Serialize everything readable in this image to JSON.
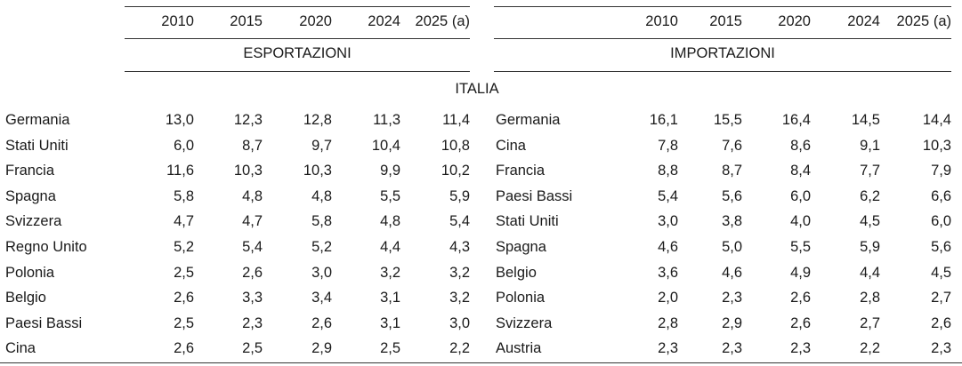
{
  "export_years": [
    "2010",
    "2015",
    "2020",
    "2024",
    "2025 (a)"
  ],
  "import_years": [
    "2010",
    "2015",
    "2020",
    "2024",
    "2025 (a)"
  ],
  "export_label": "ESPORTAZIONI",
  "import_label": "IMPORTAZIONI",
  "section_label": "ITALIA",
  "exports": [
    {
      "country": "Germania",
      "values": [
        "13,0",
        "12,3",
        "12,8",
        "11,3",
        "11,4"
      ]
    },
    {
      "country": "Stati Uniti",
      "values": [
        "6,0",
        "8,7",
        "9,7",
        "10,4",
        "10,8"
      ]
    },
    {
      "country": "Francia",
      "values": [
        "11,6",
        "10,3",
        "10,3",
        "9,9",
        "10,2"
      ]
    },
    {
      "country": "Spagna",
      "values": [
        "5,8",
        "4,8",
        "4,8",
        "5,5",
        "5,9"
      ]
    },
    {
      "country": "Svizzera",
      "values": [
        "4,7",
        "4,7",
        "5,8",
        "4,8",
        "5,4"
      ]
    },
    {
      "country": "Regno Unito",
      "values": [
        "5,2",
        "5,4",
        "5,2",
        "4,4",
        "4,3"
      ]
    },
    {
      "country": "Polonia",
      "values": [
        "2,5",
        "2,6",
        "3,0",
        "3,2",
        "3,2"
      ]
    },
    {
      "country": "Belgio",
      "values": [
        "2,6",
        "3,3",
        "3,4",
        "3,1",
        "3,2"
      ]
    },
    {
      "country": "Paesi Bassi",
      "values": [
        "2,5",
        "2,3",
        "2,6",
        "3,1",
        "3,0"
      ]
    },
    {
      "country": "Cina",
      "values": [
        "2,6",
        "2,5",
        "2,9",
        "2,5",
        "2,2"
      ]
    }
  ],
  "imports": [
    {
      "country": "Germania",
      "values": [
        "16,1",
        "15,5",
        "16,4",
        "14,5",
        "14,4"
      ]
    },
    {
      "country": "Cina",
      "values": [
        "7,8",
        "7,6",
        "8,6",
        "9,1",
        "10,3"
      ]
    },
    {
      "country": "Francia",
      "values": [
        "8,8",
        "8,7",
        "8,4",
        "7,7",
        "7,9"
      ]
    },
    {
      "country": "Paesi Bassi",
      "values": [
        "5,4",
        "5,6",
        "6,0",
        "6,2",
        "6,6"
      ]
    },
    {
      "country": "Stati Uniti",
      "values": [
        "3,0",
        "3,8",
        "4,0",
        "4,5",
        "6,0"
      ]
    },
    {
      "country": "Spagna",
      "values": [
        "4,6",
        "5,0",
        "5,5",
        "5,9",
        "5,6"
      ]
    },
    {
      "country": "Belgio",
      "values": [
        "3,6",
        "4,6",
        "4,9",
        "4,4",
        "4,5"
      ]
    },
    {
      "country": "Polonia",
      "values": [
        "2,0",
        "2,3",
        "2,6",
        "2,8",
        "2,7"
      ]
    },
    {
      "country": "Svizzera",
      "values": [
        "2,8",
        "2,9",
        "2,6",
        "2,7",
        "2,6"
      ]
    },
    {
      "country": "Austria",
      "values": [
        "2,3",
        "2,3",
        "2,3",
        "2,2",
        "2,3"
      ]
    }
  ]
}
